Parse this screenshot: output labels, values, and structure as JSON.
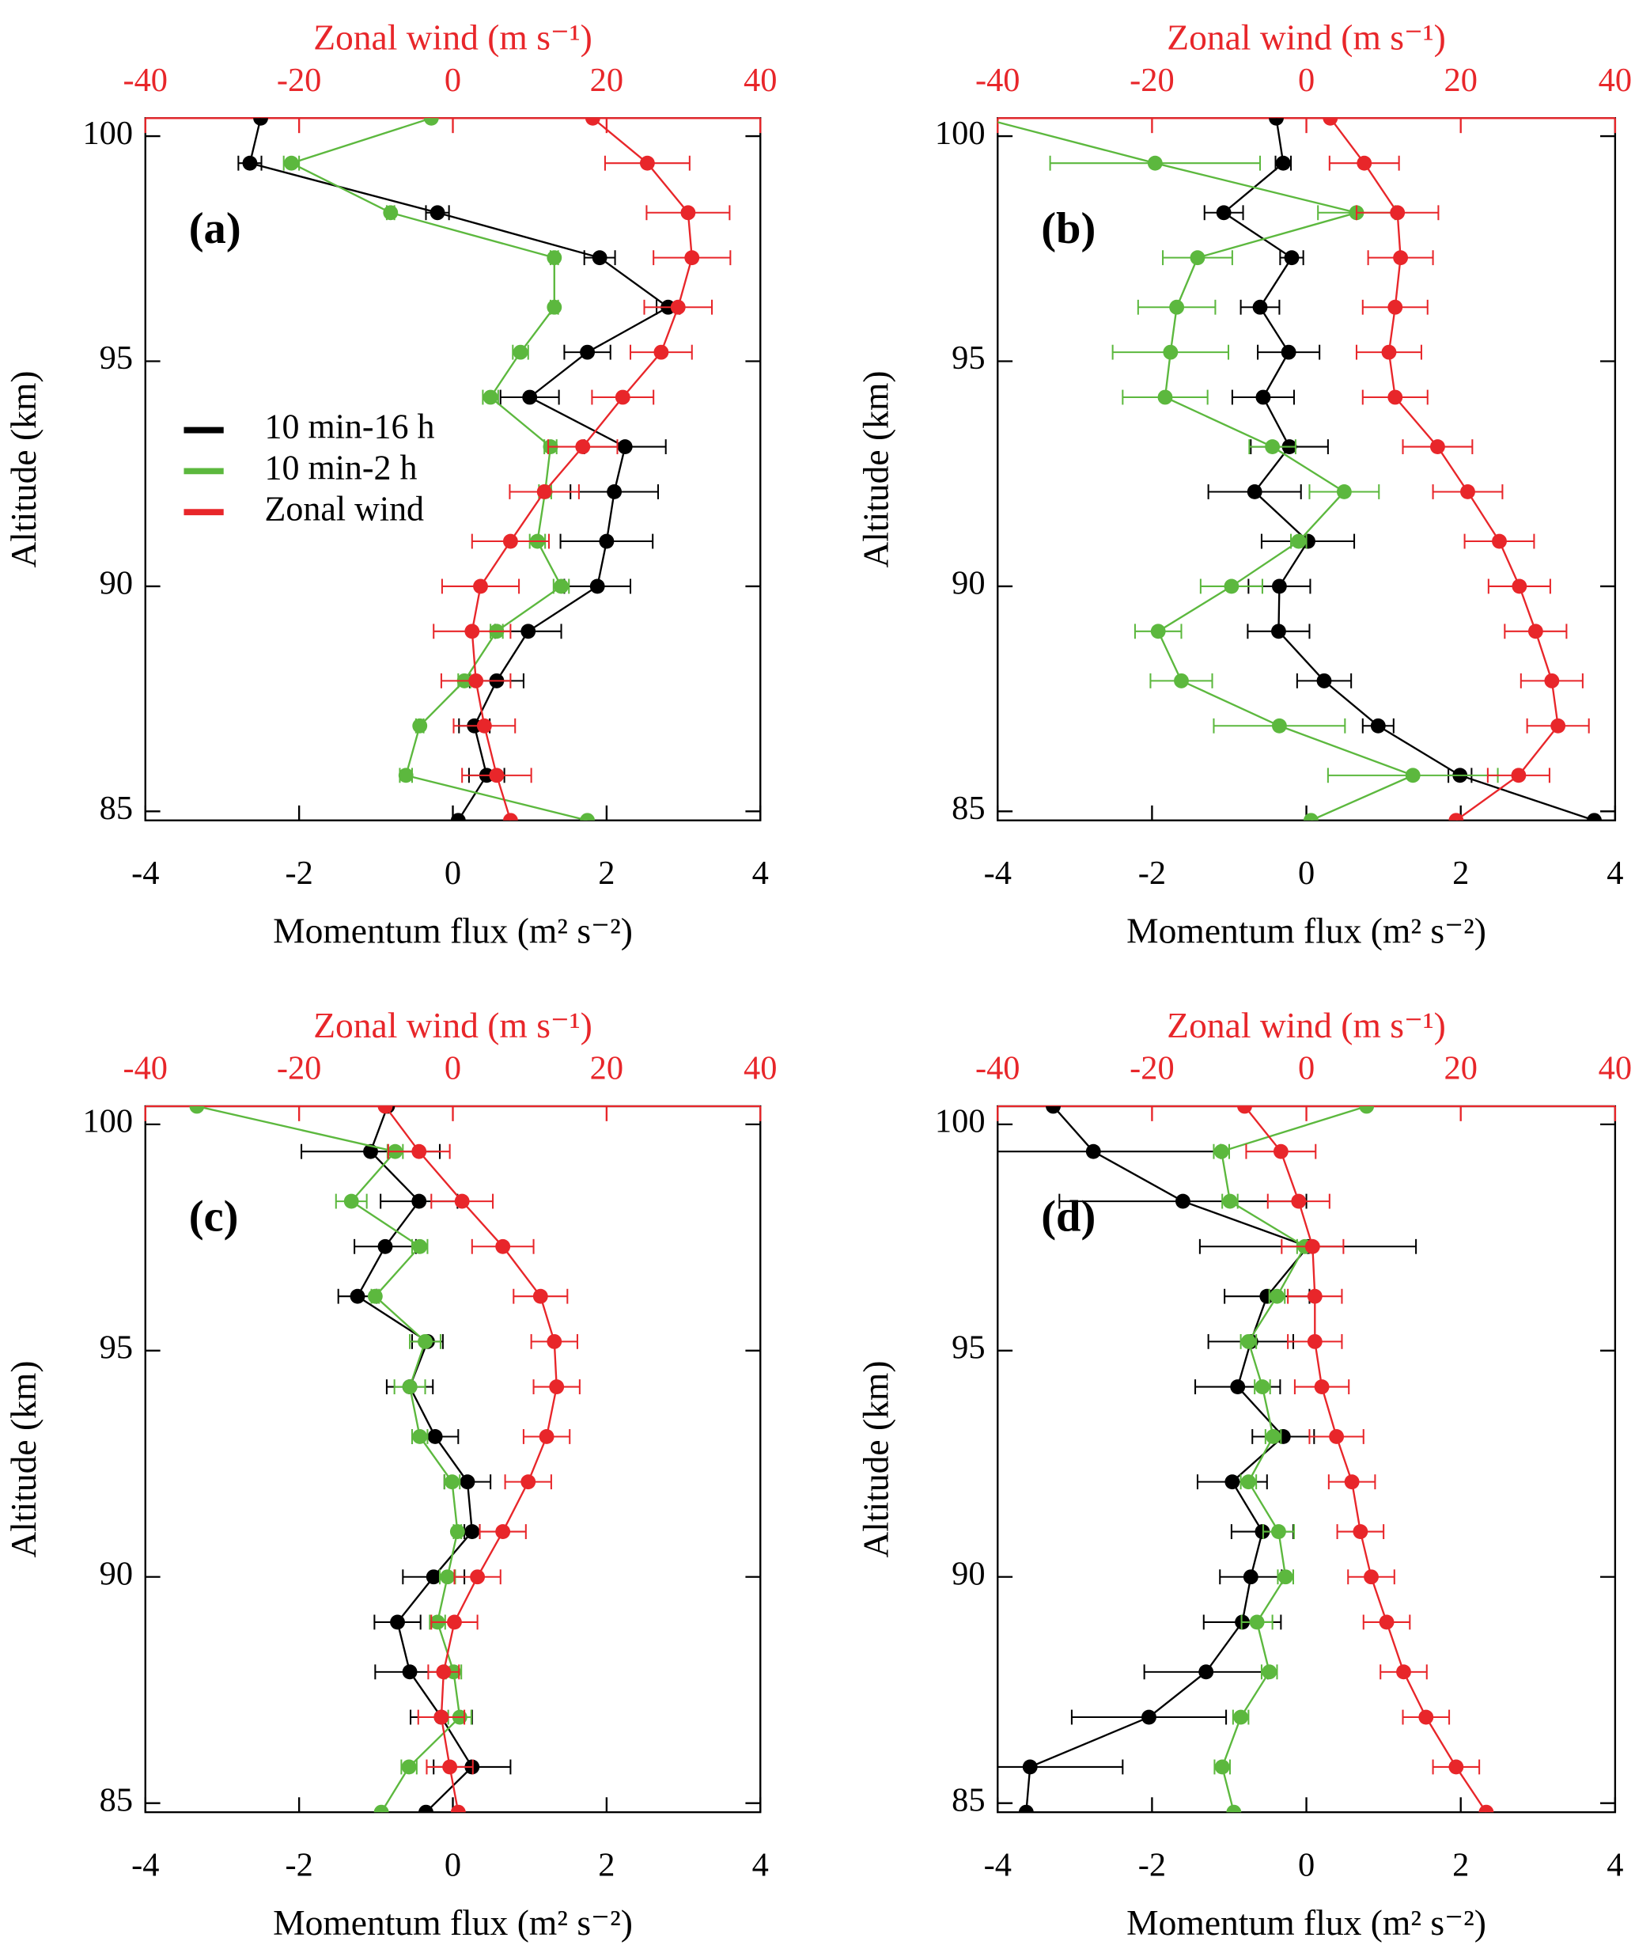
{
  "chart_data": [
    {
      "type": "line",
      "panel_label": "(a)",
      "xlabel": "Momentum flux (m² s⁻²)",
      "x2label": "Zonal wind (m s⁻¹)",
      "ylabel": "Altitude (km)",
      "xlim": [
        -4,
        4
      ],
      "xticks": [
        -4,
        -2,
        0,
        2,
        4
      ],
      "x2lim": [
        -40,
        40
      ],
      "x2ticks": [
        -40,
        -20,
        0,
        20,
        40
      ],
      "ylim": [
        84.8,
        100.4
      ],
      "yticks": [
        85,
        90,
        95,
        100
      ],
      "legend": "center left",
      "y": [
        84.8,
        85.8,
        86.9,
        87.9,
        89.0,
        90.0,
        91.0,
        92.1,
        93.1,
        94.2,
        95.2,
        96.2,
        97.3,
        98.3,
        99.4,
        100.4
      ],
      "series": [
        {
          "name": "10 min-16 h",
          "color": "#000000",
          "axis": "x",
          "values": [
            0.07,
            0.44,
            0.28,
            0.57,
            0.98,
            1.88,
            2.0,
            2.1,
            2.24,
            1.0,
            1.75,
            2.8,
            1.91,
            -0.2,
            -2.64,
            -2.5
          ],
          "errors": [
            null,
            0.23,
            0.2,
            0.35,
            0.43,
            0.43,
            0.6,
            0.57,
            0.53,
            0.38,
            0.3,
            0.15,
            0.2,
            0.15,
            0.15,
            null
          ]
        },
        {
          "name": "10 min-2 h",
          "color": "#5cb83e",
          "axis": "x",
          "values": [
            1.75,
            -0.61,
            -0.43,
            0.15,
            0.57,
            1.41,
            1.1,
            1.2,
            1.27,
            0.49,
            0.88,
            1.32,
            1.32,
            -0.81,
            -2.1,
            -0.28
          ],
          "errors": [
            null,
            0.08,
            0.05,
            0.08,
            0.08,
            0.1,
            0.1,
            0.08,
            0.08,
            0.1,
            0.1,
            0.05,
            0.05,
            0.05,
            0.1,
            null
          ]
        },
        {
          "name": "Zonal wind",
          "color": "#e8262a",
          "axis": "x2",
          "values": [
            7.5,
            5.7,
            4.1,
            3.0,
            2.5,
            3.6,
            7.5,
            11.9,
            16.9,
            22.1,
            27.1,
            29.3,
            31.1,
            30.6,
            25.3,
            18.2
          ],
          "errors": [
            null,
            4.5,
            4.0,
            4.5,
            5.0,
            5.0,
            5.0,
            4.5,
            4.5,
            4.0,
            4.0,
            4.4,
            5.0,
            5.4,
            5.5,
            null
          ]
        }
      ]
    },
    {
      "type": "line",
      "panel_label": "(b)",
      "xlabel": "Momentum flux (m² s⁻²)",
      "x2label": "Zonal wind (m s⁻¹)",
      "ylabel": "Altitude (km)",
      "xlim": [
        -4,
        4
      ],
      "xticks": [
        -4,
        -2,
        0,
        2,
        4
      ],
      "x2lim": [
        -40,
        40
      ],
      "x2ticks": [
        -40,
        -20,
        0,
        20,
        40
      ],
      "ylim": [
        84.8,
        100.4
      ],
      "yticks": [
        85,
        90,
        95,
        100
      ],
      "y": [
        84.8,
        85.8,
        86.9,
        87.9,
        89.0,
        90.0,
        91.0,
        92.1,
        93.1,
        94.2,
        95.2,
        96.2,
        97.3,
        98.3,
        99.4,
        100.4
      ],
      "series": [
        {
          "color": "#000000",
          "axis": "x",
          "values": [
            3.73,
            1.99,
            0.93,
            0.23,
            -0.36,
            -0.35,
            0.02,
            -0.67,
            -0.22,
            -0.56,
            -0.23,
            -0.6,
            -0.19,
            -1.07,
            -0.3,
            -0.39
          ],
          "errors": [
            null,
            0.15,
            0.2,
            0.35,
            0.4,
            0.4,
            0.6,
            0.6,
            0.5,
            0.4,
            0.4,
            0.25,
            0.15,
            0.25,
            0.1,
            null
          ]
        },
        {
          "color": "#5cb83e",
          "axis": "x",
          "values": [
            0.06,
            1.38,
            -0.35,
            -1.62,
            -1.92,
            -0.97,
            -0.1,
            0.49,
            -0.44,
            -1.83,
            -1.76,
            -1.68,
            -1.41,
            0.65,
            -1.96,
            -4.2
          ],
          "errors": [
            null,
            1.1,
            0.85,
            0.4,
            0.3,
            0.4,
            0.1,
            0.45,
            0.3,
            0.55,
            0.75,
            0.5,
            0.45,
            0.5,
            1.36,
            null
          ]
        },
        {
          "color": "#e8262a",
          "axis": "x2",
          "values": [
            19.4,
            27.5,
            32.6,
            31.8,
            29.7,
            27.6,
            25.0,
            20.9,
            17.0,
            11.5,
            10.7,
            11.5,
            12.2,
            11.8,
            7.5,
            3.1
          ],
          "errors": [
            null,
            4.0,
            4.0,
            4.0,
            4.0,
            4.0,
            4.5,
            4.5,
            4.5,
            4.2,
            4.2,
            4.2,
            4.2,
            5.3,
            4.5,
            null
          ]
        }
      ]
    },
    {
      "type": "line",
      "panel_label": "(c)",
      "xlabel": "Momentum flux (m² s⁻²)",
      "x2label": "Zonal wind (m s⁻¹)",
      "ylabel": "Altitude (km)",
      "xlim": [
        -4,
        4
      ],
      "xticks": [
        -4,
        -2,
        0,
        2,
        4
      ],
      "x2lim": [
        -40,
        40
      ],
      "x2ticks": [
        -40,
        -20,
        0,
        20,
        40
      ],
      "ylim": [
        84.8,
        100.4
      ],
      "yticks": [
        85,
        90,
        95,
        100
      ],
      "y": [
        84.8,
        85.8,
        86.9,
        87.9,
        89.0,
        90.0,
        91.0,
        92.1,
        93.1,
        94.2,
        95.2,
        96.2,
        97.3,
        98.3,
        99.4,
        100.4
      ],
      "series": [
        {
          "color": "#000000",
          "axis": "x",
          "values": [
            -0.35,
            0.25,
            -0.15,
            -0.56,
            -0.72,
            -0.25,
            0.25,
            0.19,
            -0.23,
            -0.56,
            -0.33,
            -1.24,
            -0.88,
            -0.44,
            -1.07,
            -0.85
          ],
          "errors": [
            null,
            0.5,
            0.4,
            0.45,
            0.3,
            0.4,
            0.1,
            0.3,
            0.3,
            0.3,
            0.2,
            0.25,
            0.4,
            0.5,
            0.9,
            null
          ]
        },
        {
          "color": "#5cb83e",
          "axis": "x",
          "values": [
            -0.93,
            -0.57,
            0.09,
            0.01,
            -0.2,
            -0.07,
            0.06,
            -0.01,
            -0.43,
            -0.56,
            -0.36,
            -1.01,
            -0.43,
            -1.32,
            -0.75,
            -3.33
          ],
          "errors": [
            null,
            0.1,
            0.15,
            0.1,
            0.1,
            0.1,
            0.05,
            0.1,
            0.1,
            0.2,
            0.2,
            0.05,
            0.1,
            0.2,
            0.1,
            null
          ]
        },
        {
          "color": "#e8262a",
          "axis": "x2",
          "values": [
            0.7,
            -0.4,
            -1.5,
            -1.2,
            0.2,
            3.2,
            6.5,
            9.8,
            12.2,
            13.5,
            13.2,
            11.4,
            6.5,
            1.2,
            -4.4,
            -8.8
          ],
          "errors": [
            null,
            3.0,
            3.0,
            2.0,
            3.0,
            3.0,
            3.0,
            3.0,
            3.0,
            3.0,
            3.0,
            3.5,
            4.0,
            4.0,
            4.0,
            null
          ]
        }
      ]
    },
    {
      "type": "line",
      "panel_label": "(d)",
      "xlabel": "Momentum flux (m² s⁻²)",
      "x2label": "Zonal wind (m s⁻¹)",
      "ylabel": "Altitude (km)",
      "xlim": [
        -4,
        4
      ],
      "xticks": [
        -4,
        -2,
        0,
        2,
        4
      ],
      "x2lim": [
        -40,
        40
      ],
      "x2ticks": [
        -40,
        -20,
        0,
        20,
        40
      ],
      "ylim": [
        84.8,
        100.4
      ],
      "yticks": [
        85,
        90,
        95,
        100
      ],
      "y": [
        84.8,
        85.8,
        86.9,
        87.9,
        89.0,
        90.0,
        91.0,
        92.1,
        93.1,
        94.2,
        95.2,
        96.2,
        97.3,
        98.3,
        99.4,
        100.4
      ],
      "series": [
        {
          "color": "#000000",
          "axis": "x",
          "values": [
            -3.63,
            -3.58,
            -2.04,
            -1.3,
            -0.83,
            -0.72,
            -0.57,
            -0.96,
            -0.3,
            -0.89,
            -0.72,
            -0.51,
            0.02,
            -1.6,
            -2.76,
            -3.28
          ],
          "errors": [
            null,
            1.2,
            1.0,
            0.8,
            0.5,
            0.4,
            0.4,
            0.45,
            0.4,
            0.55,
            0.55,
            0.55,
            1.4,
            1.6,
            1.65,
            null
          ]
        },
        {
          "color": "#5cb83e",
          "axis": "x",
          "values": [
            -0.94,
            -1.09,
            -0.85,
            -0.48,
            -0.64,
            -0.27,
            -0.36,
            -0.75,
            -0.43,
            -0.57,
            -0.75,
            -0.38,
            -0.02,
            -0.99,
            -1.1,
            0.78
          ],
          "errors": [
            null,
            0.1,
            0.1,
            0.1,
            0.2,
            0.1,
            0.2,
            0.1,
            0.1,
            0.1,
            0.1,
            0.1,
            0.1,
            0.1,
            0.1,
            null
          ]
        },
        {
          "color": "#e8262a",
          "axis": "x2",
          "values": [
            23.3,
            19.4,
            15.5,
            12.6,
            10.4,
            8.4,
            7.0,
            5.9,
            3.9,
            2.0,
            1.1,
            1.1,
            0.8,
            -1.0,
            -3.3,
            -8.0
          ],
          "errors": [
            null,
            3.0,
            3.0,
            3.0,
            3.0,
            3.0,
            3.0,
            3.0,
            3.5,
            3.5,
            3.5,
            3.5,
            4.0,
            4.0,
            4.5,
            null
          ]
        }
      ]
    }
  ]
}
